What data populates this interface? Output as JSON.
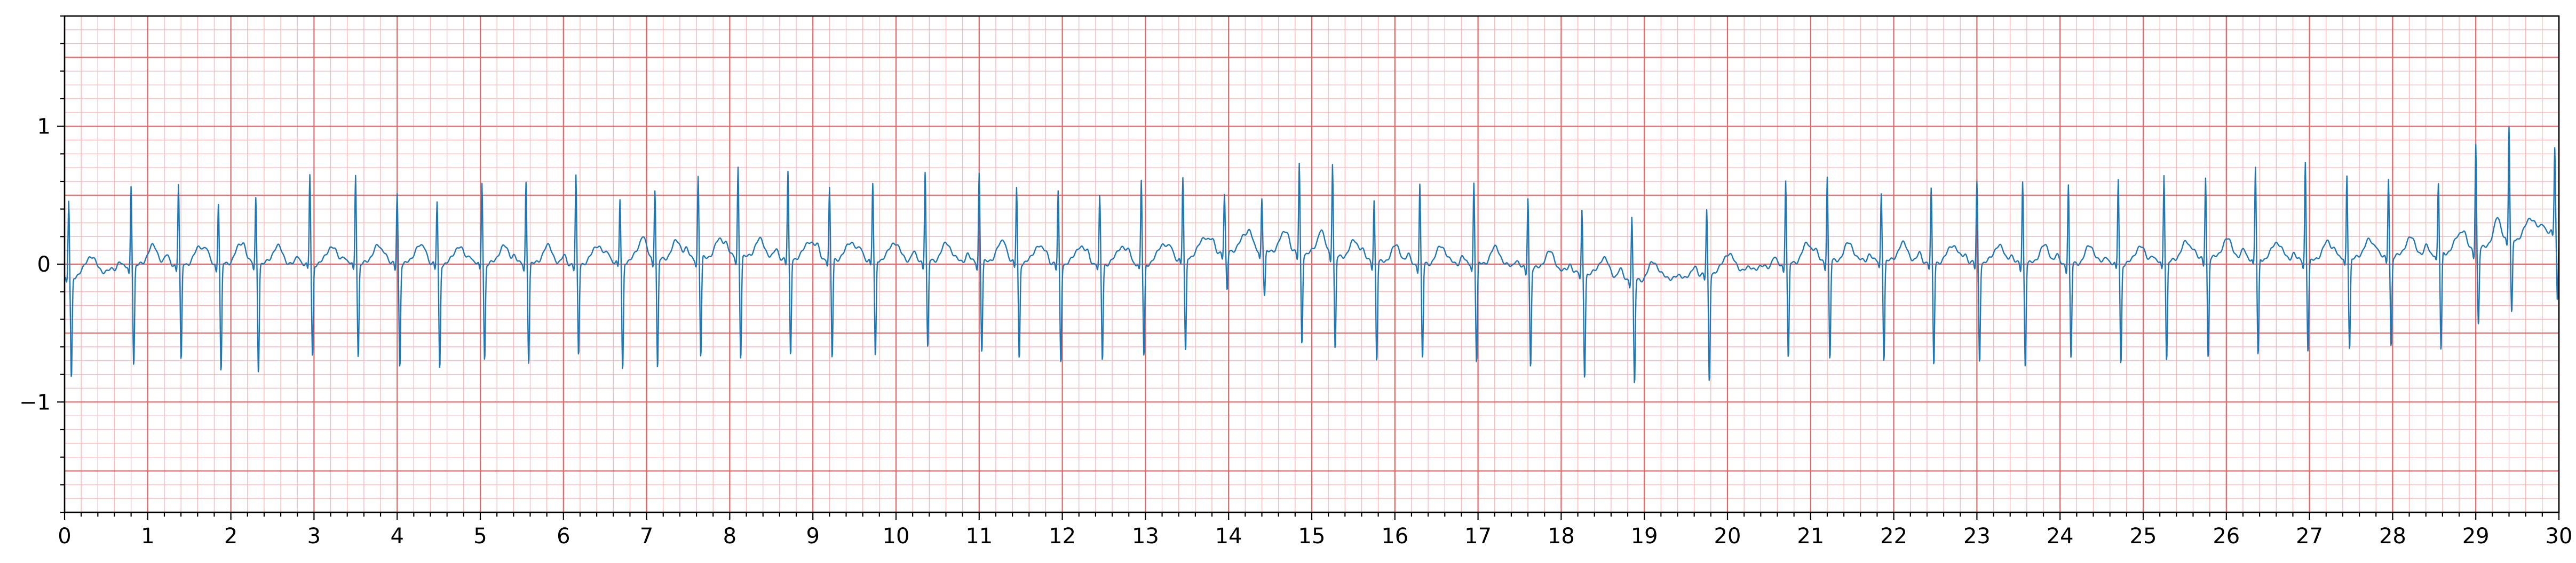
{
  "chart_data": {
    "type": "line",
    "title": "",
    "xlabel": "",
    "ylabel": "",
    "xlim": [
      0,
      30
    ],
    "ylim": [
      -1.8,
      1.8
    ],
    "x_ticks": [
      "0",
      "1",
      "2",
      "3",
      "4",
      "5",
      "6",
      "7",
      "8",
      "9",
      "10",
      "11",
      "12",
      "13",
      "14",
      "15",
      "16",
      "17",
      "18",
      "19",
      "20",
      "21",
      "22",
      "23",
      "24",
      "25",
      "26",
      "27",
      "28",
      "29",
      "30"
    ],
    "y_ticks": [
      {
        "value": 1,
        "label": "1"
      },
      {
        "value": 0,
        "label": "0"
      },
      {
        "value": -1,
        "label": "−1"
      }
    ],
    "grid": {
      "major": true,
      "minor": true,
      "major_step_x": 1,
      "minor_step_x": 0.2,
      "major_step_y": 0.5,
      "minor_step_y": 0.1
    },
    "colors": {
      "signal": "#1f77b4",
      "major_grid": "#e36666",
      "minor_grid": "#f7b9b9",
      "axis": "#000000"
    },
    "beat_times": [
      0.05,
      0.8,
      1.37,
      1.85,
      2.3,
      2.95,
      3.5,
      4.0,
      4.48,
      5.02,
      5.55,
      6.15,
      6.68,
      7.1,
      7.62,
      8.1,
      8.7,
      9.2,
      9.72,
      10.35,
      11.0,
      11.45,
      11.95,
      12.45,
      12.95,
      13.45,
      13.95,
      14.4,
      14.85,
      15.25,
      15.75,
      16.3,
      16.95,
      17.6,
      18.25,
      18.85,
      19.75,
      20.7,
      21.2,
      21.85,
      22.45,
      23.0,
      23.55,
      24.1,
      24.7,
      25.25,
      25.75,
      26.35,
      26.95,
      27.45,
      27.95,
      28.55,
      29.0,
      29.4,
      29.95
    ],
    "r_amplitudes": [
      0.55,
      0.6,
      0.58,
      0.45,
      0.48,
      0.65,
      0.66,
      0.52,
      0.45,
      0.6,
      0.6,
      0.63,
      0.45,
      0.52,
      0.6,
      0.66,
      0.62,
      0.5,
      0.55,
      0.65,
      0.65,
      0.55,
      0.52,
      0.48,
      0.6,
      0.58,
      0.4,
      0.4,
      0.65,
      0.68,
      0.45,
      0.58,
      0.6,
      0.52,
      0.45,
      0.45,
      0.45,
      0.62,
      0.62,
      0.5,
      0.52,
      0.58,
      0.6,
      0.58,
      0.62,
      0.65,
      0.6,
      0.66,
      0.72,
      0.62,
      0.58,
      0.5,
      0.78,
      0.82,
      0.6
    ],
    "s_amplitudes": [
      -0.75,
      -0.72,
      -0.72,
      -0.8,
      -0.78,
      -0.68,
      -0.68,
      -0.75,
      -0.77,
      -0.7,
      -0.72,
      -0.68,
      -0.8,
      -0.8,
      -0.72,
      -0.73,
      -0.72,
      -0.73,
      -0.72,
      -0.65,
      -0.65,
      -0.7,
      -0.72,
      -0.7,
      -0.68,
      -0.7,
      -0.3,
      -0.32,
      -0.65,
      -0.68,
      -0.72,
      -0.7,
      -0.72,
      -0.72,
      -0.75,
      -0.78,
      -0.8,
      -0.7,
      -0.72,
      -0.72,
      -0.76,
      -0.72,
      -0.75,
      -0.7,
      -0.73,
      -0.72,
      -0.72,
      -0.72,
      -0.65,
      -0.65,
      -0.65,
      -0.72,
      -0.55,
      -0.55,
      -0.52
    ],
    "baseline_points": [
      [
        0,
        -0.1
      ],
      [
        1,
        0.0
      ],
      [
        2,
        0.0
      ],
      [
        4,
        0.0
      ],
      [
        6,
        0.0
      ],
      [
        8,
        0.05
      ],
      [
        10,
        0.03
      ],
      [
        12,
        0.0
      ],
      [
        13,
        0.0
      ],
      [
        14,
        0.1
      ],
      [
        15,
        0.07
      ],
      [
        16,
        0.0
      ],
      [
        17,
        0.0
      ],
      [
        18,
        -0.05
      ],
      [
        19,
        -0.12
      ],
      [
        20,
        -0.05
      ],
      [
        21,
        0.02
      ],
      [
        22,
        0.02
      ],
      [
        24,
        0.0
      ],
      [
        25,
        0.0
      ],
      [
        26,
        0.05
      ],
      [
        27,
        0.02
      ],
      [
        28,
        0.05
      ],
      [
        29,
        0.1
      ],
      [
        29.6,
        0.2
      ],
      [
        30,
        0.25
      ]
    ]
  }
}
